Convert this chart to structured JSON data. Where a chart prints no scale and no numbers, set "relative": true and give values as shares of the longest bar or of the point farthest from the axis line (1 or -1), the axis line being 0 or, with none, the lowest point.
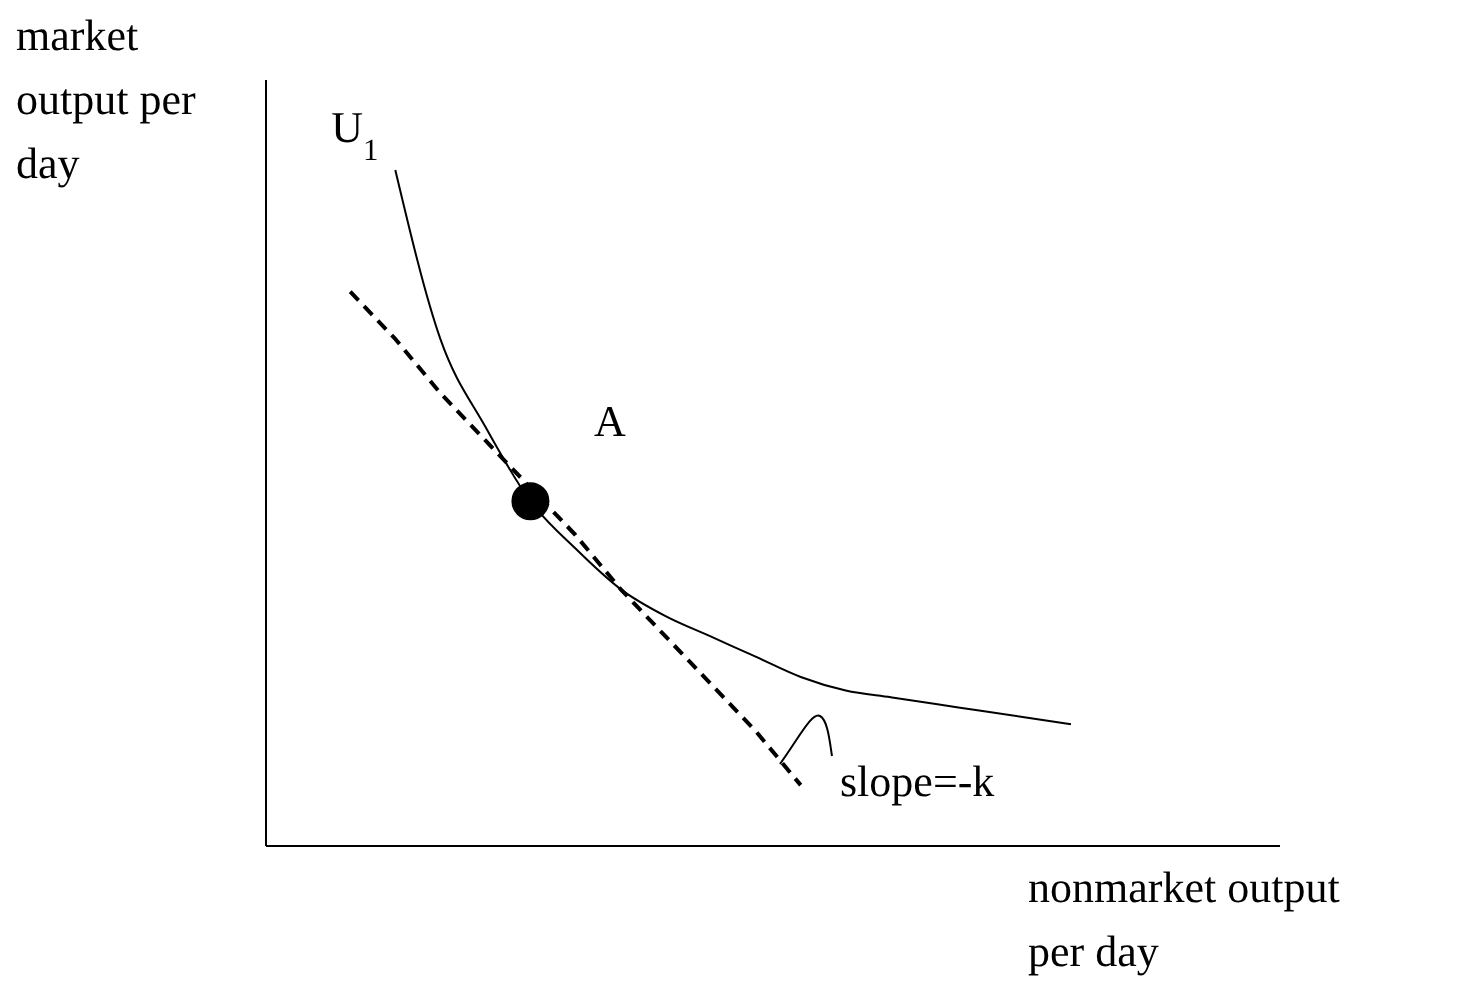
{
  "chart_data": {
    "type": "line",
    "relative": true,
    "xlabel": "nonmarket output per day",
    "ylabel": "market output per day",
    "marker": "none",
    "line_style": "solid",
    "categories": [
      null,
      null,
      null,
      null,
      null,
      null,
      null,
      null,
      null,
      null,
      null,
      null,
      null,
      null,
      null,
      null,
      null
    ],
    "series": [
      {
        "name": "U$_{1}$",
        "color": "#000000",
        "values": [
          null,
          1,
          0.75,
          0.62,
          0.51,
          0.44,
          0.38,
          0.34,
          0.31,
          0.28,
          0.25,
          0.23,
          0.22,
          0.21,
          0.2,
          0.19,
          0.18
        ]
      },
      {
        "color": "#000000",
        "line_style": "dashed",
        "values": [
          0.82,
          0.75,
          0.67,
          0.6,
          0.53,
          0.46,
          0.38,
          0.31,
          0.24,
          0.17,
          0.09,
          null,
          null,
          null,
          null,
          null,
          null
        ]
      },
      {
        "color": "#000000",
        "marker": "circle",
        "values": [
          null,
          null,
          null,
          null,
          0.51,
          null,
          null,
          null,
          null,
          null,
          null,
          null,
          null,
          null,
          null,
          null,
          null
        ]
      }
    ],
    "annotations": [
      "A",
      "slope=-k"
    ]
  }
}
